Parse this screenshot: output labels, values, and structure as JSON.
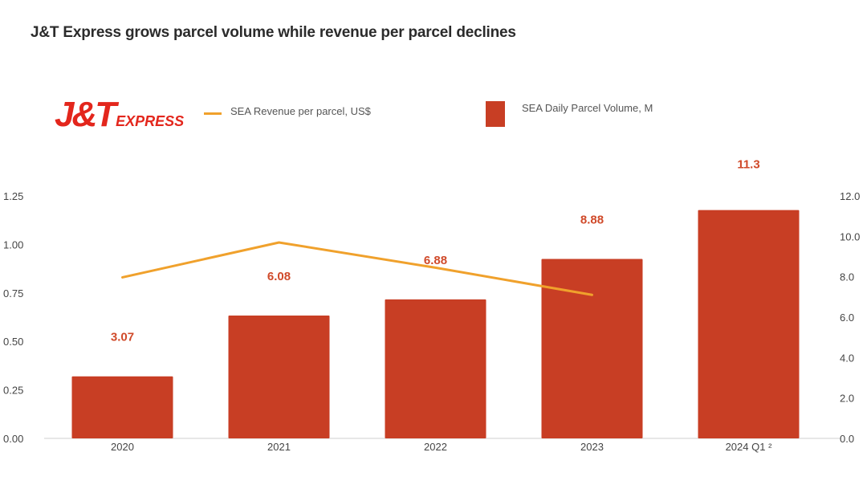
{
  "title": "J&T Express grows parcel volume while revenue per parcel declines",
  "logo": {
    "main": "J&T",
    "sub": "EXPRESS"
  },
  "legend": {
    "line_label": "SEA Revenue per parcel, US$",
    "bar_label": "SEA Daily Parcel Volume, M"
  },
  "colors": {
    "bar": "#c83e24",
    "line": "#f0a12c",
    "label": "#d04a2a",
    "brand": "#e3261c"
  },
  "chart_data": {
    "type": "bar",
    "categories": [
      "2020",
      "2021",
      "2022",
      "2023",
      "2024 Q1 ²"
    ],
    "series": [
      {
        "name": "SEA Daily Parcel Volume, M",
        "type": "bar",
        "axis": "right",
        "values": [
          3.07,
          6.08,
          6.88,
          8.88,
          11.3
        ],
        "data_labels": [
          "3.07",
          "6.08",
          "6.88",
          "8.88",
          "11.3"
        ]
      },
      {
        "name": "SEA Revenue per parcel, US$",
        "type": "line",
        "axis": "left",
        "values": [
          0.83,
          1.01,
          0.88,
          0.74,
          null
        ]
      }
    ],
    "y_left": {
      "ylim": [
        0,
        1.25
      ],
      "ticks": [
        "0.00",
        "0.25",
        "0.50",
        "0.75",
        "1.00",
        "1.25"
      ],
      "tick_values": [
        0,
        0.25,
        0.5,
        0.75,
        1.0,
        1.25
      ]
    },
    "y_right": {
      "ylim": [
        0,
        12
      ],
      "ticks": [
        "0.0",
        "2.0",
        "4.0",
        "6.0",
        "8.0",
        "10.0",
        "12.0"
      ],
      "tick_values": [
        0,
        2,
        4,
        6,
        8,
        10,
        12
      ]
    },
    "grid": false,
    "legend_position": "top"
  }
}
